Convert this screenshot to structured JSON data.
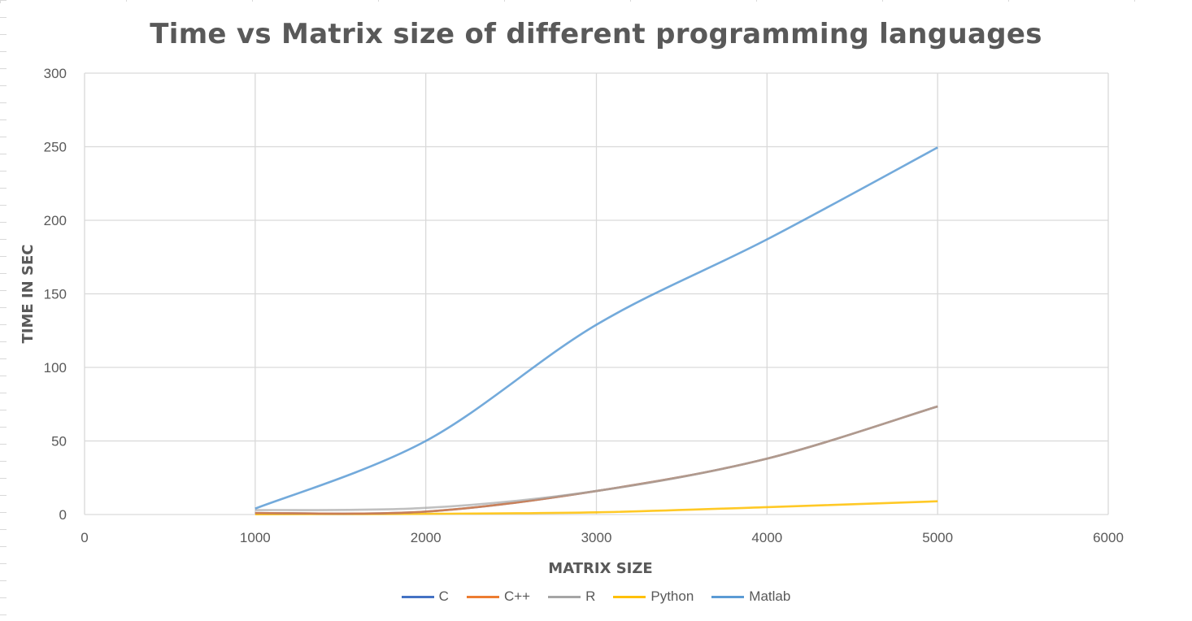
{
  "chart_data": {
    "type": "line",
    "title": "Time vs Matrix size of different programming languages",
    "xlabel": "MATRIX SIZE",
    "ylabel": "TIME IN SEC",
    "xlim": [
      0,
      6000
    ],
    "ylim": [
      0,
      300
    ],
    "x_ticks": [
      0,
      1000,
      2000,
      3000,
      4000,
      5000,
      6000
    ],
    "y_ticks": [
      0,
      50,
      100,
      150,
      200,
      250,
      300
    ],
    "grid": true,
    "legend_position": "bottom",
    "x": [
      1000,
      2000,
      3000,
      4000,
      5000
    ],
    "series": [
      {
        "name": "C",
        "color": "#4472c4",
        "values": [
          1,
          2,
          16,
          38,
          73.5
        ]
      },
      {
        "name": "C++",
        "color": "#ed7d31",
        "values": [
          1,
          2,
          16,
          38,
          73.5
        ]
      },
      {
        "name": "R",
        "color": "#a5a5a5",
        "values": [
          3,
          4.5,
          16,
          38,
          73.5
        ]
      },
      {
        "name": "Python",
        "color": "#ffc000",
        "values": [
          0.2,
          0.5,
          1.5,
          5,
          9
        ]
      },
      {
        "name": "Matlab",
        "color": "#5b9bd5",
        "values": [
          4,
          50,
          129,
          187,
          249.5
        ]
      }
    ]
  }
}
